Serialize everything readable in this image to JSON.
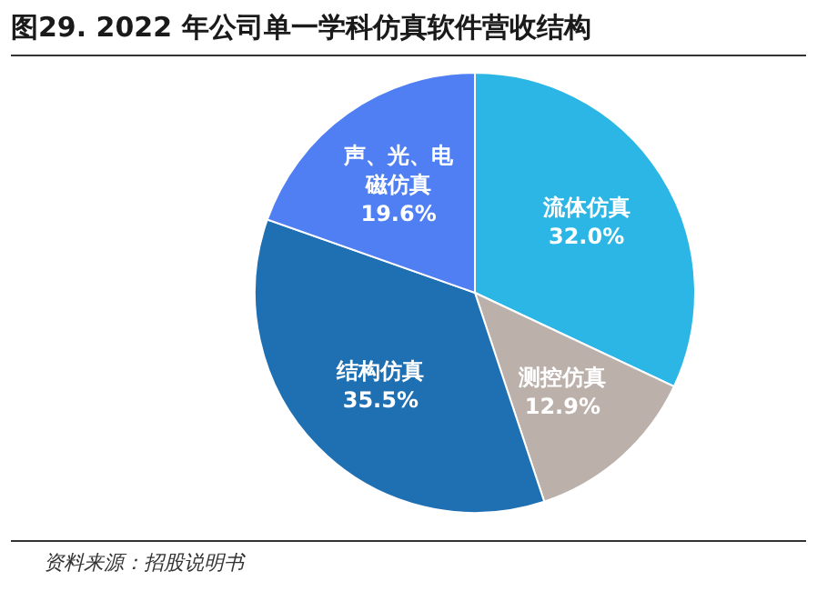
{
  "chart_data": {
    "type": "pie",
    "title": "图29. 2022 年公司单一学科仿真软件营收结构",
    "categories": [
      "流体仿真",
      "测控仿真",
      "结构仿真",
      "声、光、电磁仿真"
    ],
    "values": [
      32.0,
      12.9,
      35.5,
      19.6
    ],
    "colors": [
      "#2bb6e5",
      "#bcb0aa",
      "#1f6fb3",
      "#4f7ff2"
    ],
    "value_labels": [
      "32.0%",
      "12.9%",
      "35.5%",
      "19.6%"
    ],
    "annotations": [
      "资料来源：招股说明书"
    ]
  }
}
